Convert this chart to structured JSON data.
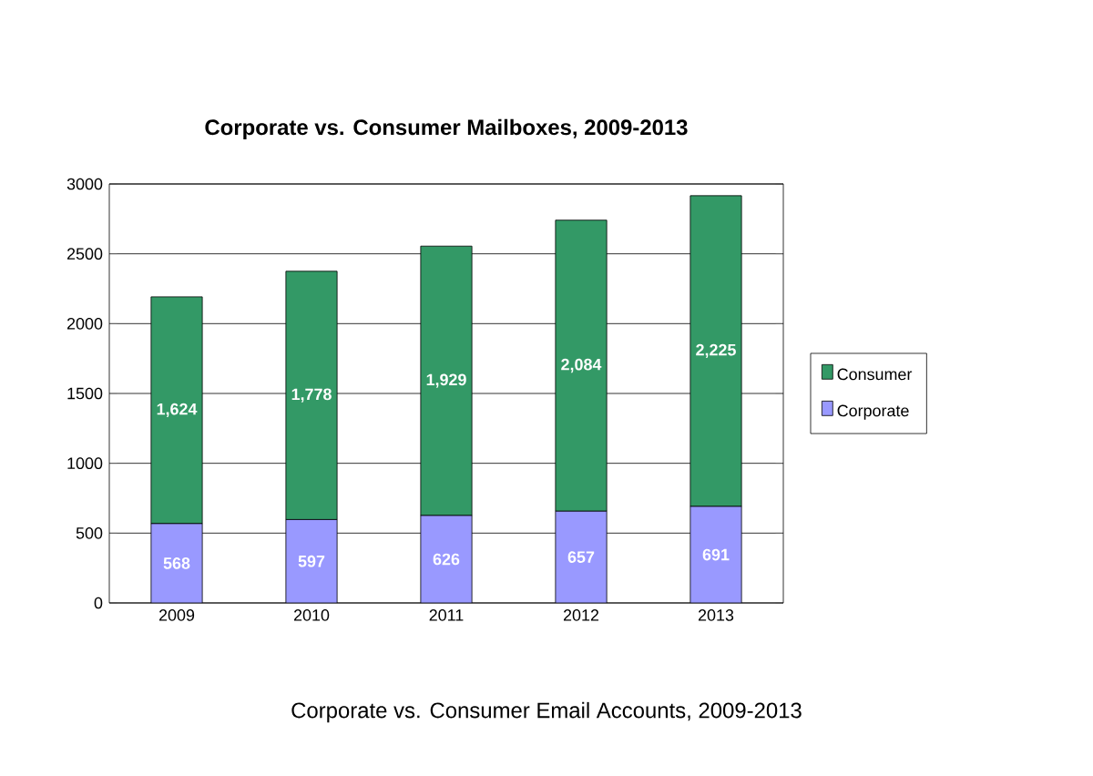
{
  "chart_data": {
    "type": "bar",
    "title": "Corporate vs. Consumer Mailboxes, 2009-2013",
    "categories": [
      "2009",
      "2010",
      "2011",
      "2012",
      "2013"
    ],
    "stacked": true,
    "series": [
      {
        "name": "Corporate",
        "color": "#9999ff",
        "values": [
          568,
          597,
          626,
          657,
          691
        ],
        "value_labels": [
          "568",
          "597",
          "626",
          "657",
          "691"
        ]
      },
      {
        "name": "Consumer",
        "color": "#339966",
        "values": [
          1624,
          1778,
          1929,
          2084,
          2225
        ],
        "value_labels": [
          "1,624",
          "1,778",
          "1,929",
          "2,084",
          "2,225"
        ]
      }
    ],
    "ylim": [
      0,
      3000
    ],
    "yticks": [
      0,
      500,
      1000,
      1500,
      2000,
      2500,
      3000
    ],
    "grid": "y",
    "legend": "right",
    "annotations": [
      "Corporate vs. Consumer Email Accounts, 2009-2013"
    ]
  }
}
